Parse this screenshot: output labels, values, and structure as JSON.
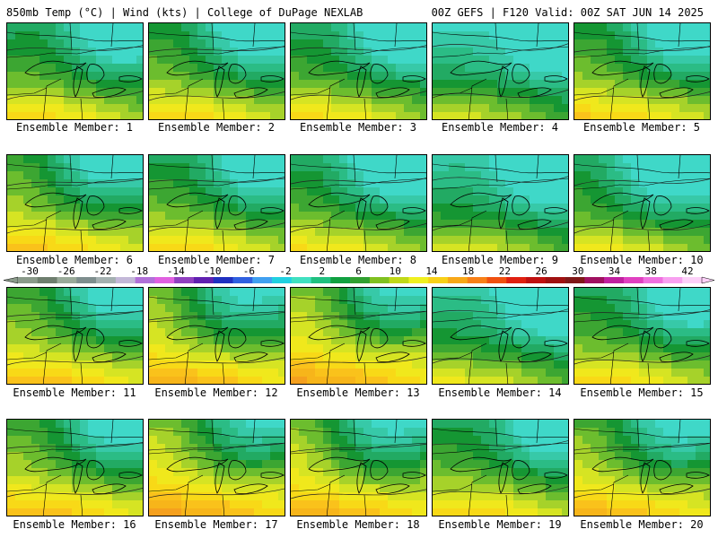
{
  "header": {
    "title_left": "850mb Temp (°C) | Wind (kts) | College of DuPage NEXLAB",
    "title_right": "00Z GEFS | F120 Valid: 00Z SAT JUN 14 2025"
  },
  "panels": [
    {
      "label": "Ensemble Member: 1"
    },
    {
      "label": "Ensemble Member: 2"
    },
    {
      "label": "Ensemble Member: 3"
    },
    {
      "label": "Ensemble Member: 4"
    },
    {
      "label": "Ensemble Member: 5"
    },
    {
      "label": "Ensemble Member: 6"
    },
    {
      "label": "Ensemble Member: 7"
    },
    {
      "label": "Ensemble Member: 8"
    },
    {
      "label": "Ensemble Member: 9"
    },
    {
      "label": "Ensemble Member: 10"
    },
    {
      "label": "Ensemble Member: 11"
    },
    {
      "label": "Ensemble Member: 12"
    },
    {
      "label": "Ensemble Member: 13"
    },
    {
      "label": "Ensemble Member: 14"
    },
    {
      "label": "Ensemble Member: 15"
    },
    {
      "label": "Ensemble Member: 16"
    },
    {
      "label": "Ensemble Member: 17"
    },
    {
      "label": "Ensemble Member: 18"
    },
    {
      "label": "Ensemble Member: 19"
    },
    {
      "label": "Ensemble Member: 20"
    }
  ],
  "colorbar": {
    "ticks": [
      "-30",
      "-26",
      "-22",
      "-18",
      "-14",
      "-10",
      "-6",
      "-2",
      "2",
      "6",
      "10",
      "14",
      "18",
      "22",
      "26",
      "30",
      "34",
      "38",
      "42"
    ],
    "colors": [
      "#8a9a8a",
      "#6e7e6e",
      "#9aaa9a",
      "#7e8e8e",
      "#a4b0b0",
      "#c3b8d8",
      "#b070d8",
      "#e060e0",
      "#9040c0",
      "#6020b0",
      "#2030c0",
      "#3060e0",
      "#40a0f0",
      "#20d0e0",
      "#40e0c0",
      "#20c080",
      "#10a040",
      "#30a030",
      "#80c020",
      "#c0d818",
      "#f0f020",
      "#f8d018",
      "#f8a818",
      "#f88018",
      "#f05010",
      "#e02010",
      "#c01010",
      "#a01010",
      "#801818",
      "#a01060",
      "#c020a0",
      "#e040c0",
      "#f070e0",
      "#f8a0f0",
      "#fcd0f8"
    ]
  },
  "map_palette": [
    "#f5a01e",
    "#f7b51a",
    "#fac21b",
    "#f8d917",
    "#f0e81c",
    "#d6e423",
    "#a6d22a",
    "#6cbd2e",
    "#3ca632",
    "#159633",
    "#22aa63",
    "#2bbc85",
    "#37c9a8",
    "#3fd8c8"
  ]
}
